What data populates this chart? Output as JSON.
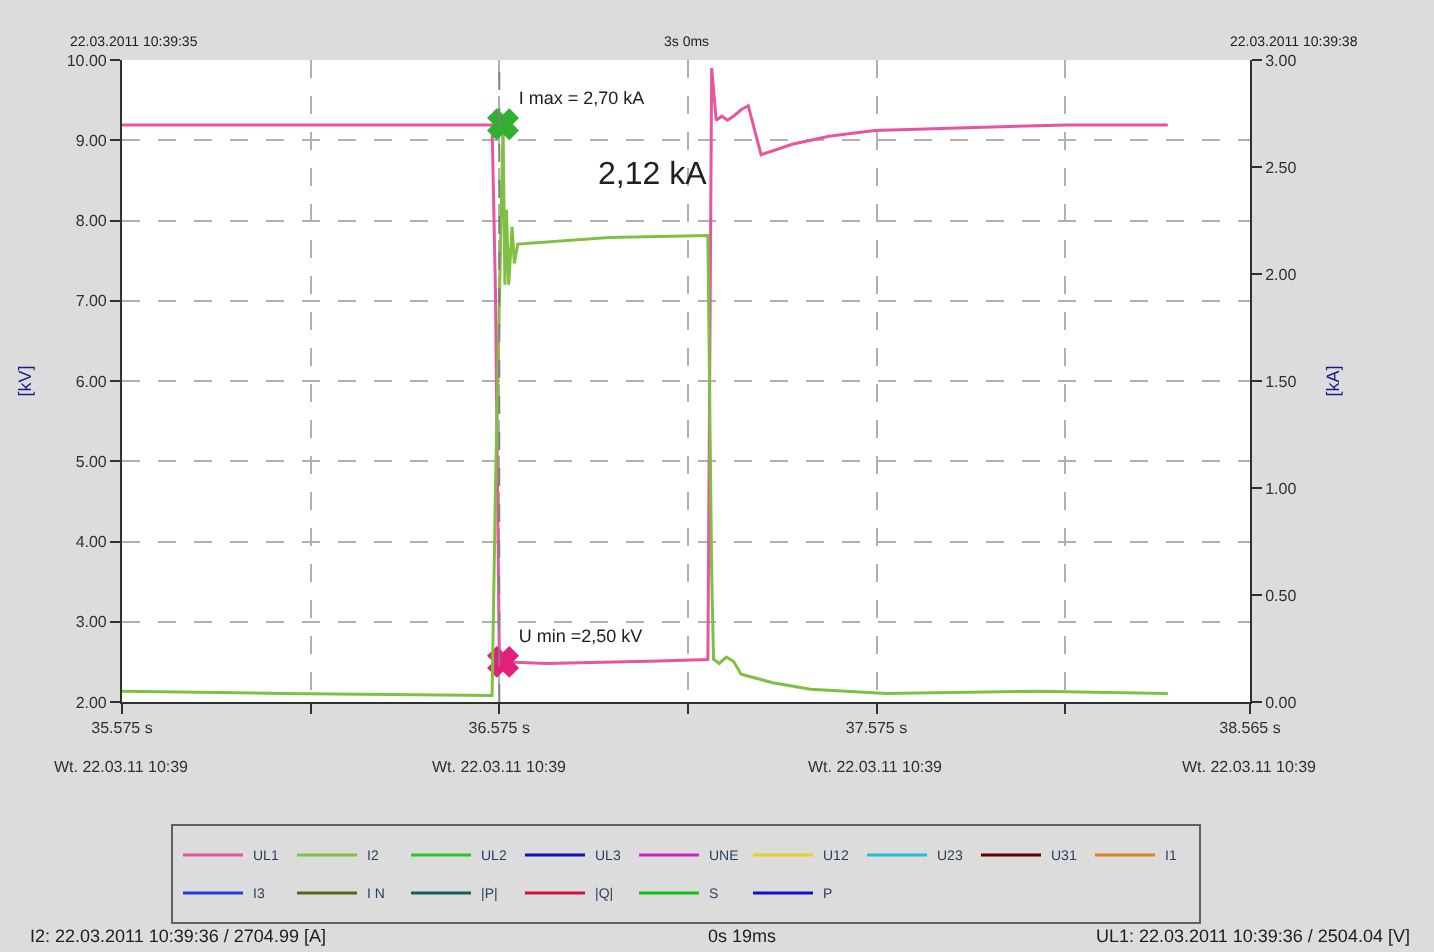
{
  "chart_data": {
    "type": "line",
    "ylabel": "[kV]",
    "y2label": "[kA]",
    "xlim": [
      35.575,
      38.565
    ],
    "xticks": [
      {
        "value": 35.575,
        "label": "35.575 s"
      },
      {
        "value": 36.075,
        "label": null
      },
      {
        "value": 36.575,
        "label": "36.575 s"
      },
      {
        "value": 37.075,
        "label": null
      },
      {
        "value": 37.575,
        "label": "37.575 s"
      },
      {
        "value": 38.075,
        "label": null
      },
      {
        "value": 38.565,
        "label": "38.565 s"
      }
    ],
    "ylim": [
      2,
      10
    ],
    "yticks": [
      {
        "value": 2,
        "label": "2.00"
      },
      {
        "value": 3,
        "label": "3.00"
      },
      {
        "value": 4,
        "label": "4.00"
      },
      {
        "value": 5,
        "label": "5.00"
      },
      {
        "value": 6,
        "label": "6.00"
      },
      {
        "value": 7,
        "label": "7.00"
      },
      {
        "value": 8,
        "label": "8.00"
      },
      {
        "value": 9,
        "label": "9.00"
      },
      {
        "value": 10,
        "label": "10.00"
      }
    ],
    "y2lim": [
      0,
      3
    ],
    "y2ticks": [
      {
        "value": 0,
        "label": "0.00"
      },
      {
        "value": 0.5,
        "label": "0.50"
      },
      {
        "value": 1,
        "label": "1.00"
      },
      {
        "value": 1.5,
        "label": "1.50"
      },
      {
        "value": 2,
        "label": "2.00"
      },
      {
        "value": 2.5,
        "label": "2.50"
      },
      {
        "value": 3,
        "label": "3.00"
      }
    ],
    "grid": true,
    "legend": "bottom",
    "marker": "none",
    "line_style": "solid",
    "ref_lines": [
      {
        "axis": "x",
        "value": 36.575,
        "color": "#808080",
        "line_style": "dashed"
      }
    ],
    "series": [
      {
        "name": "UL1",
        "color": "#e8559f",
        "x": [
          35.575,
          36.0,
          36.556,
          36.565,
          36.575,
          36.585,
          36.7,
          37.0,
          37.128,
          37.138,
          37.15,
          37.165,
          37.18,
          37.196,
          37.216,
          37.235,
          37.269,
          37.352,
          37.449,
          37.57,
          37.837,
          38.08,
          38.347
        ],
        "values": [
          9.19,
          9.19,
          9.19,
          7.1,
          2.6,
          2.5,
          2.48,
          2.51,
          2.53,
          9.9,
          9.25,
          9.3,
          9.25,
          9.3,
          9.38,
          9.43,
          8.82,
          8.95,
          9.05,
          9.12,
          9.16,
          9.19,
          9.19
        ]
      },
      {
        "name": "I2",
        "color": "#80c040",
        "axis": "y2",
        "x": [
          35.575,
          36.0,
          36.556,
          36.565,
          36.585,
          36.59,
          36.594,
          36.6,
          36.609,
          36.615,
          36.624,
          36.866,
          37.128,
          37.138,
          37.143,
          37.158,
          37.177,
          37.196,
          37.216,
          37.3,
          37.4,
          37.6,
          38.0,
          38.347
        ],
        "values": [
          0.05,
          0.04,
          0.03,
          1.0,
          2.7,
          1.95,
          2.3,
          1.95,
          2.22,
          2.05,
          2.14,
          2.17,
          2.18,
          0.6,
          0.2,
          0.18,
          0.21,
          0.19,
          0.13,
          0.09,
          0.06,
          0.04,
          0.05,
          0.04
        ]
      },
      {
        "type": "scatter",
        "color": "#30b030",
        "axis": "y2",
        "marker": "cross",
        "x": [
          36.585
        ],
        "values": [
          2.7
        ],
        "value_labels": [
          "I max = 2,70 kA"
        ]
      },
      {
        "type": "scatter",
        "color": "#e0207a",
        "marker": "cross",
        "x": [
          36.585
        ],
        "values": [
          2.5
        ],
        "value_labels": [
          "U min =2,50 kV"
        ]
      },
      {
        "name": "UL2",
        "color": "#22cc22",
        "values": [
          null
        ]
      },
      {
        "name": "UL3",
        "color": "#1010c0",
        "values": [
          null
        ]
      },
      {
        "name": "UNE",
        "color": "#cc22cc",
        "values": [
          null
        ]
      },
      {
        "name": "U12",
        "color": "#e8d020",
        "values": [
          null
        ]
      },
      {
        "name": "U23",
        "color": "#20c0d0",
        "values": [
          null
        ]
      },
      {
        "name": "U31",
        "color": "#600000",
        "values": [
          null
        ]
      },
      {
        "name": "I1",
        "color": "#e08020",
        "values": [
          null
        ]
      },
      {
        "name": "I3",
        "color": "#2040e0",
        "values": [
          null
        ]
      },
      {
        "name": "I N",
        "color": "#606020",
        "values": [
          null
        ]
      },
      {
        "name": "|P|",
        "color": "#106060",
        "values": [
          null
        ]
      },
      {
        "name": "|Q|",
        "color": "#d01040",
        "values": [
          null
        ]
      },
      {
        "name": "S",
        "color": "#10c010",
        "values": [
          null
        ]
      },
      {
        "name": "P",
        "color": "#1010d0",
        "values": [
          null
        ]
      }
    ],
    "annotations": [
      "2,12 kA",
      "22.03.2011 10:39:35",
      "3s 0ms",
      "22.03.2011 10:39:38",
      "I2: 22.03.2011 10:39:36 / 2704.99 [A]",
      "0s 19ms",
      "UL1: 22.03.2011 10:39:36 / 2504.04 [V]",
      "Wt. 22.03.11 10:39",
      "Wt. 22.03.11 10:39",
      "Wt. 22.03.11 10:39",
      "Wt. 22.03.11 10:39"
    ]
  }
}
